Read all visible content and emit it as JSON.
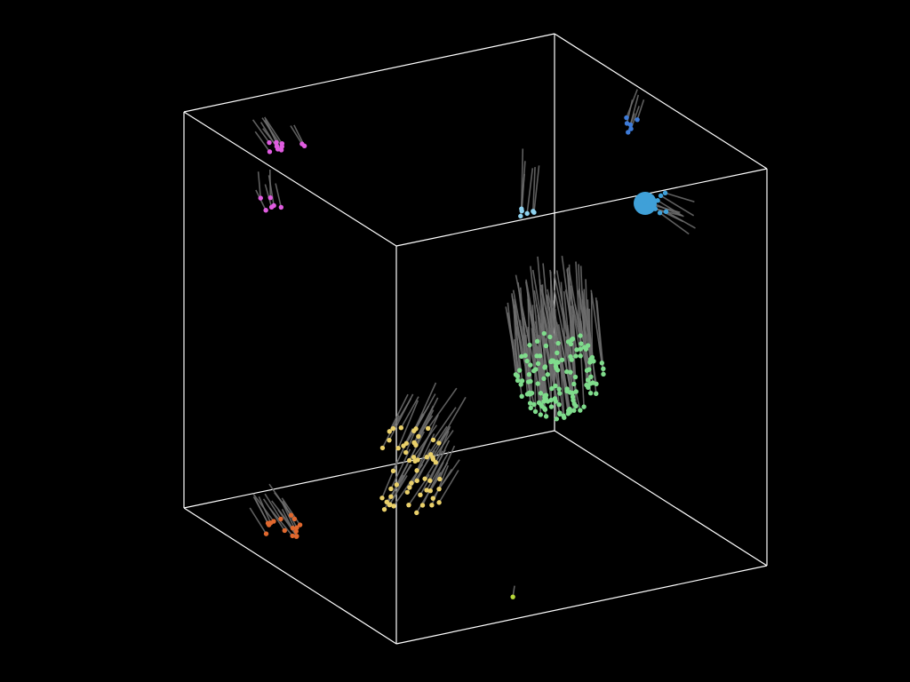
{
  "scene": {
    "background": "#000000",
    "box_color": "#ffffff",
    "trail_color": "#6e6e6e",
    "clusters": [
      {
        "name": "magenta-cluster",
        "color": "#e05ce0"
      },
      {
        "name": "cyan-cluster",
        "color": "#8fd3f0"
      },
      {
        "name": "blue-cluster",
        "color": "#3d7bd9"
      },
      {
        "name": "sky-blue-cluster",
        "color": "#3fa0d8"
      },
      {
        "name": "green-cluster",
        "color": "#7fdc8c"
      },
      {
        "name": "yellow-cluster",
        "color": "#ead06a"
      },
      {
        "name": "orange-cluster",
        "color": "#e0682e"
      },
      {
        "name": "lime-point",
        "color": "#b8d83a"
      }
    ]
  }
}
